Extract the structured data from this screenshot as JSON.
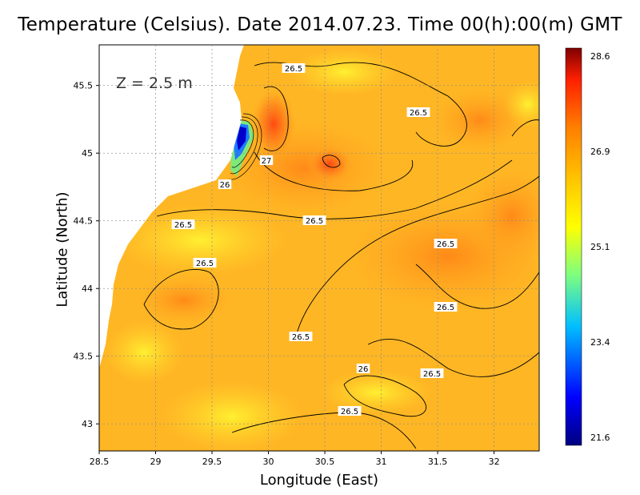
{
  "title": "Temperature (Celsius). Date 2014.07.23. Time 00(h):00(m) GMT",
  "xlabel": "Longitude (East)",
  "ylabel": "Latitude (North)",
  "depth_label": "Z = 2.5 m",
  "x_ticks": [
    "28.5",
    "29",
    "29.5",
    "30",
    "30.5",
    "31",
    "31.5",
    "32"
  ],
  "y_ticks": [
    "45.5",
    "45",
    "44.5",
    "44",
    "43.5",
    "43"
  ],
  "colorbar": {
    "tick_labels": [
      "28.6",
      "26.9",
      "25.1",
      "23.4",
      "21.6"
    ],
    "colors": [
      "#00007f",
      "#0000ff",
      "#00bfff",
      "#7fff7f",
      "#ffff00",
      "#ffbf00",
      "#ff7f00",
      "#ff2000",
      "#7f0000"
    ]
  },
  "contour_labels": [
    "26.5",
    "26.5",
    "27",
    "26",
    "26.5",
    "26.5",
    "26.5",
    "26.5",
    "26.5",
    "26.5",
    "26",
    "26.5",
    "26.5"
  ],
  "chart_data": {
    "type": "heatmap",
    "title": "Temperature (Celsius). Date 2014.07.23. Time 00(h):00(m) GMT",
    "xlabel": "Longitude (East)",
    "ylabel": "Latitude (North)",
    "xlim": [
      28.5,
      32.4
    ],
    "ylim": [
      42.8,
      45.8
    ],
    "x_ticks": [
      28.5,
      29,
      29.5,
      30,
      30.5,
      31,
      31.5,
      32
    ],
    "y_ticks": [
      43,
      43.5,
      44,
      44.5,
      45,
      45.5
    ],
    "color_range": [
      21.6,
      28.6
    ],
    "colorbar_ticks": [
      21.6,
      23.4,
      25.1,
      26.9,
      28.6
    ],
    "grid": true
  }
}
